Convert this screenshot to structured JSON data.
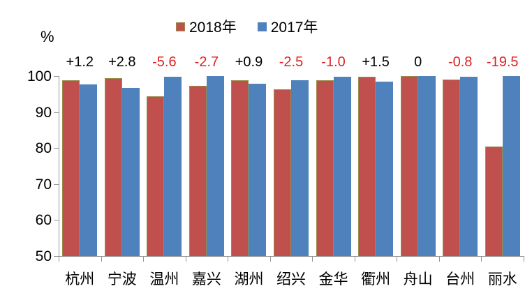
{
  "chart_data": {
    "type": "bar",
    "title": "",
    "unit_label": "%",
    "categories": [
      "杭州",
      "宁波",
      "温州",
      "嘉兴",
      "湖州",
      "绍兴",
      "金华",
      "衢州",
      "舟山",
      "台州",
      "丽水"
    ],
    "series": [
      {
        "name": "2018年",
        "color": "#c0504d",
        "border_color": "#9b8b4b",
        "values": [
          98.9,
          99.5,
          94.3,
          97.3,
          98.8,
          96.4,
          98.9,
          99.9,
          100.0,
          99.1,
          80.5
        ]
      },
      {
        "name": "2017年",
        "color": "#4f81bd",
        "border_color": "#4f81bd",
        "values": [
          97.7,
          96.7,
          99.9,
          100.0,
          97.9,
          98.9,
          99.9,
          98.4,
          100.0,
          99.9,
          100.0
        ]
      }
    ],
    "annotations": [
      {
        "text": "+1.2",
        "color": "#000000"
      },
      {
        "text": "+2.8",
        "color": "#000000"
      },
      {
        "text": "-5.6",
        "color": "#e02020"
      },
      {
        "text": "-2.7",
        "color": "#e02020"
      },
      {
        "text": "+0.9",
        "color": "#000000"
      },
      {
        "text": "-2.5",
        "color": "#e02020"
      },
      {
        "text": "-1.0",
        "color": "#e02020"
      },
      {
        "text": "+1.5",
        "color": "#000000"
      },
      {
        "text": "0",
        "color": "#000000"
      },
      {
        "text": "-0.8",
        "color": "#e02020"
      },
      {
        "text": "-19.5",
        "color": "#e02020"
      }
    ],
    "ylim": [
      50,
      100
    ],
    "yticks": [
      100,
      90,
      80,
      70,
      60,
      50
    ],
    "grid": false,
    "legend_position": "top-center",
    "axis_color": "#969696"
  }
}
